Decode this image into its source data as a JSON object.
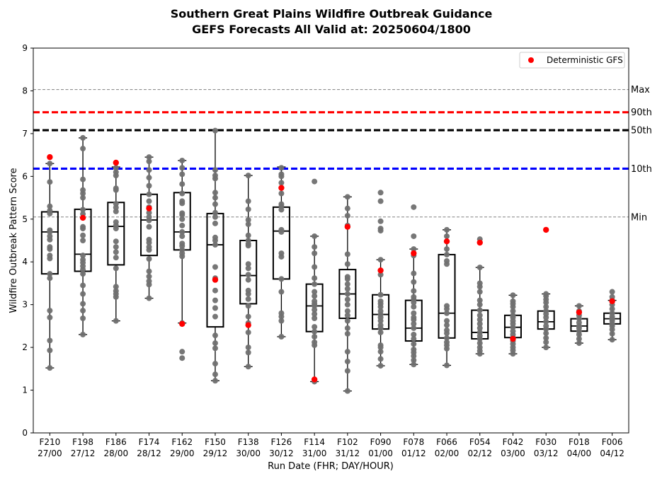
{
  "chart_data": {
    "type": "box",
    "title": "Southern Great Plains Wildfire Outbreak Guidance",
    "subtitle": "GEFS Forecasts All Valid at: 20250604/1800",
    "xlabel": "Run Date (FHR; DAY/HOUR)",
    "ylabel": "Wildfire Outbreak Pattern Score",
    "ylim": [
      0,
      9
    ],
    "yticks": [
      0,
      1,
      2,
      3,
      4,
      5,
      6,
      7,
      8,
      9
    ],
    "categories": [
      {
        "fhr": "F210",
        "date": "27/00"
      },
      {
        "fhr": "F198",
        "date": "27/12"
      },
      {
        "fhr": "F186",
        "date": "28/00"
      },
      {
        "fhr": "F174",
        "date": "28/12"
      },
      {
        "fhr": "F162",
        "date": "29/00"
      },
      {
        "fhr": "F150",
        "date": "29/12"
      },
      {
        "fhr": "F138",
        "date": "30/00"
      },
      {
        "fhr": "F126",
        "date": "30/12"
      },
      {
        "fhr": "F114",
        "date": "31/00"
      },
      {
        "fhr": "F102",
        "date": "31/12"
      },
      {
        "fhr": "F090",
        "date": "01/00"
      },
      {
        "fhr": "F078",
        "date": "01/12"
      },
      {
        "fhr": "F066",
        "date": "02/00"
      },
      {
        "fhr": "F054",
        "date": "02/12"
      },
      {
        "fhr": "F042",
        "date": "03/00"
      },
      {
        "fhr": "F030",
        "date": "03/12"
      },
      {
        "fhr": "F018",
        "date": "04/00"
      },
      {
        "fhr": "F006",
        "date": "04/12"
      }
    ],
    "boxes": [
      {
        "whislo": 1.52,
        "q1": 3.72,
        "med": 4.7,
        "q3": 5.17,
        "whishi": 6.3
      },
      {
        "whislo": 2.3,
        "q1": 3.78,
        "med": 4.18,
        "q3": 5.23,
        "whishi": 6.9
      },
      {
        "whislo": 2.62,
        "q1": 3.93,
        "med": 4.83,
        "q3": 5.39,
        "whishi": 6.22
      },
      {
        "whislo": 3.15,
        "q1": 4.15,
        "med": 4.98,
        "q3": 5.58,
        "whishi": 6.45
      },
      {
        "whislo": 2.57,
        "q1": 4.28,
        "med": 4.7,
        "q3": 5.62,
        "whishi": 6.37
      },
      {
        "whislo": 1.22,
        "q1": 2.48,
        "med": 4.4,
        "q3": 5.13,
        "whishi": 7.07
      },
      {
        "whislo": 1.55,
        "q1": 3.02,
        "med": 3.68,
        "q3": 4.5,
        "whishi": 6.02
      },
      {
        "whislo": 2.25,
        "q1": 3.6,
        "med": 4.72,
        "q3": 5.28,
        "whishi": 6.22
      },
      {
        "whislo": 1.2,
        "q1": 2.37,
        "med": 2.97,
        "q3": 3.48,
        "whishi": 4.6
      },
      {
        "whislo": 0.98,
        "q1": 2.68,
        "med": 3.25,
        "q3": 3.82,
        "whishi": 5.52
      },
      {
        "whislo": 1.57,
        "q1": 2.43,
        "med": 2.77,
        "q3": 3.23,
        "whishi": 4.05
      },
      {
        "whislo": 1.6,
        "q1": 2.15,
        "med": 2.45,
        "q3": 3.1,
        "whishi": 4.3
      },
      {
        "whislo": 1.58,
        "q1": 2.22,
        "med": 2.8,
        "q3": 4.17,
        "whishi": 4.75
      },
      {
        "whislo": 1.85,
        "q1": 2.2,
        "med": 2.35,
        "q3": 2.87,
        "whishi": 3.87
      },
      {
        "whislo": 1.85,
        "q1": 2.23,
        "med": 2.47,
        "q3": 2.75,
        "whishi": 3.22
      },
      {
        "whislo": 2.0,
        "q1": 2.43,
        "med": 2.6,
        "q3": 2.85,
        "whishi": 3.25
      },
      {
        "whislo": 2.1,
        "q1": 2.38,
        "med": 2.5,
        "q3": 2.67,
        "whishi": 2.97
      },
      {
        "whislo": 2.18,
        "q1": 2.55,
        "med": 2.67,
        "q3": 2.8,
        "whishi": 3.1
      }
    ],
    "members": [
      [
        1.52,
        1.93,
        2.16,
        2.7,
        2.86,
        3.62,
        3.72,
        4.08,
        4.15,
        4.3,
        4.35,
        4.52,
        4.6,
        4.7,
        4.74,
        5.13,
        5.2,
        5.3,
        5.87,
        6.3
      ],
      [
        2.3,
        2.68,
        2.86,
        3.02,
        3.25,
        3.45,
        3.72,
        3.82,
        3.9,
        3.98,
        4.05,
        4.15,
        4.5,
        4.62,
        4.78,
        4.82,
        5.12,
        5.22,
        5.5,
        5.6,
        5.68,
        5.93,
        6.65,
        6.9
      ],
      [
        2.62,
        3.18,
        3.25,
        3.32,
        3.42,
        3.85,
        4.1,
        4.23,
        4.35,
        4.48,
        4.78,
        4.85,
        4.93,
        5.18,
        5.27,
        5.36,
        5.68,
        5.72,
        6.02,
        6.1,
        6.2
      ],
      [
        3.15,
        3.47,
        3.55,
        3.66,
        3.78,
        4.07,
        4.28,
        4.35,
        4.45,
        4.52,
        4.82,
        4.97,
        5.05,
        5.15,
        5.28,
        5.42,
        5.58,
        5.78,
        5.97,
        6.15,
        6.35,
        6.45
      ],
      [
        1.75,
        1.9,
        2.57,
        4.13,
        4.2,
        4.28,
        4.37,
        4.43,
        4.6,
        4.7,
        4.85,
        5.0,
        5.1,
        5.14,
        5.37,
        5.42,
        5.6,
        5.82,
        6.05,
        6.2,
        6.37
      ],
      [
        1.22,
        1.37,
        1.62,
        1.98,
        2.1,
        2.28,
        2.72,
        2.92,
        3.1,
        3.33,
        3.62,
        3.88,
        4.4,
        4.5,
        4.57,
        4.9,
        5.05,
        5.15,
        5.35,
        5.5,
        5.62,
        5.95,
        6.02,
        6.15,
        7.07
      ],
      [
        1.55,
        1.88,
        2.0,
        2.35,
        2.57,
        2.72,
        2.97,
        3.13,
        3.25,
        3.33,
        3.58,
        3.7,
        3.85,
        3.95,
        4.38,
        4.42,
        4.5,
        4.62,
        4.88,
        4.98,
        5.23,
        5.42,
        6.02
      ],
      [
        2.25,
        2.62,
        2.72,
        2.8,
        3.3,
        3.6,
        4.12,
        4.2,
        4.7,
        4.75,
        5.22,
        5.3,
        5.35,
        5.6,
        5.85,
        6.0,
        6.05,
        6.2
      ],
      [
        1.2,
        2.05,
        2.12,
        2.25,
        2.37,
        2.48,
        2.68,
        2.78,
        2.88,
        2.97,
        3.02,
        3.08,
        3.2,
        3.3,
        3.48,
        3.62,
        3.88,
        4.2,
        4.35,
        4.6,
        5.88
      ],
      [
        0.98,
        1.45,
        1.67,
        1.9,
        2.32,
        2.45,
        2.62,
        2.75,
        2.85,
        3.0,
        3.12,
        3.25,
        3.37,
        3.48,
        3.6,
        3.65,
        3.95,
        4.18,
        4.85,
        5.08,
        5.25,
        5.52
      ],
      [
        1.57,
        1.73,
        1.9,
        2.0,
        2.05,
        2.35,
        2.45,
        2.52,
        2.62,
        2.7,
        2.77,
        2.85,
        2.95,
        3.02,
        3.08,
        3.23,
        3.7,
        4.05,
        4.73,
        4.78,
        4.95,
        5.42,
        5.62
      ],
      [
        1.6,
        1.7,
        1.8,
        1.88,
        1.95,
        2.08,
        2.2,
        2.3,
        2.45,
        2.55,
        2.65,
        2.7,
        2.8,
        2.95,
        3.05,
        3.12,
        3.18,
        3.32,
        3.53,
        3.73,
        4.15,
        4.3,
        4.6,
        5.28
      ],
      [
        1.58,
        1.97,
        2.05,
        2.12,
        2.22,
        2.33,
        2.4,
        2.52,
        2.62,
        2.8,
        2.9,
        2.97,
        3.95,
        4.02,
        4.17,
        4.3,
        4.6,
        4.75
      ],
      [
        1.85,
        1.92,
        2.0,
        2.1,
        2.2,
        2.27,
        2.35,
        2.45,
        2.55,
        2.65,
        2.75,
        2.87,
        3.0,
        3.1,
        3.3,
        3.42,
        3.5,
        3.87,
        4.53
      ],
      [
        1.85,
        1.93,
        2.0,
        2.08,
        2.15,
        2.23,
        2.3,
        2.38,
        2.47,
        2.55,
        2.62,
        2.7,
        2.75,
        2.85,
        2.95,
        3.02,
        3.08,
        3.22
      ],
      [
        2.0,
        2.12,
        2.22,
        2.33,
        2.43,
        2.5,
        2.6,
        2.7,
        2.78,
        2.85,
        2.95,
        3.05,
        3.12,
        3.2,
        3.25
      ],
      [
        2.1,
        2.2,
        2.3,
        2.38,
        2.45,
        2.5,
        2.58,
        2.67,
        2.75,
        2.85,
        2.97
      ],
      [
        2.18,
        2.32,
        2.42,
        2.5,
        2.55,
        2.62,
        2.67,
        2.72,
        2.8,
        2.9,
        3.0,
        3.1,
        3.18,
        3.3
      ]
    ],
    "deterministic": {
      "name": "Deterministic GFS",
      "color": "#ff0000",
      "values": [
        6.45,
        5.03,
        6.32,
        5.25,
        2.55,
        3.58,
        2.52,
        5.73,
        1.25,
        4.82,
        3.8,
        4.2,
        4.48,
        4.45,
        2.2,
        4.75,
        2.82,
        3.08
      ]
    },
    "reference_lines": [
      {
        "label": "Max",
        "value": 8.03,
        "color": "#808080",
        "style": "dashed-thin"
      },
      {
        "label": "90th",
        "value": 7.5,
        "color": "#ff0000",
        "style": "dashed-thick"
      },
      {
        "label": "50th",
        "value": 7.08,
        "color": "#000000",
        "style": "dashed-thick"
      },
      {
        "label": "10th",
        "value": 6.18,
        "color": "#0000ff",
        "style": "dashed-thick"
      },
      {
        "label": "Min",
        "value": 5.05,
        "color": "#808080",
        "style": "dashed-thin"
      }
    ],
    "member_color": "#707070",
    "legend": {
      "position": "top-right"
    },
    "grid": false
  }
}
